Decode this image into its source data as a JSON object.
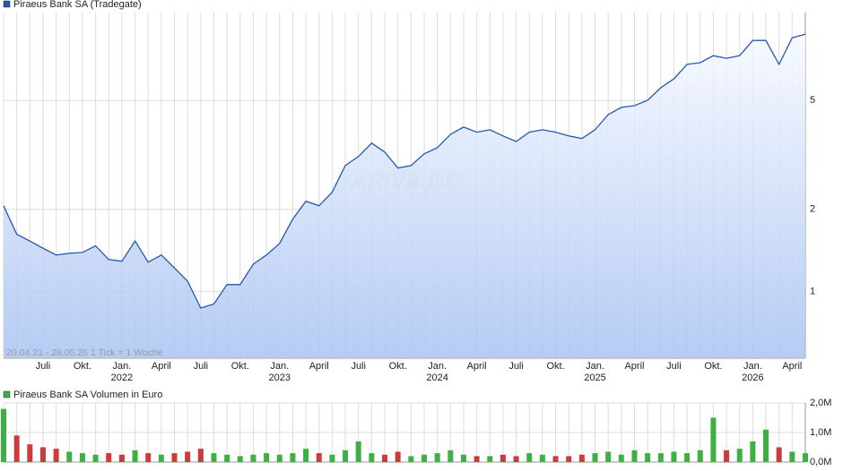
{
  "chart_data": [
    {
      "type": "line",
      "title": "Piraeus Bank SA (Tradegate)",
      "note": "20.04.21 - 28.05.26   1 Tick = 1 Woche",
      "watermark": "ARIVA.DE",
      "x": [
        "2021-04",
        "2021-05",
        "2021-06",
        "2021-07",
        "2021-08",
        "2021-09",
        "2021-10",
        "2021-11",
        "2021-12",
        "2022-01",
        "2022-02",
        "2022-03",
        "2022-04",
        "2022-05",
        "2022-06",
        "2022-07",
        "2022-08",
        "2022-09",
        "2022-10",
        "2022-11",
        "2022-12",
        "2023-01",
        "2023-02",
        "2023-03",
        "2023-04",
        "2023-05",
        "2023-06",
        "2023-07",
        "2023-08",
        "2023-09",
        "2023-10",
        "2023-11",
        "2023-12",
        "2024-01",
        "2024-02",
        "2024-03",
        "2024-04",
        "2024-05",
        "2024-06",
        "2024-07",
        "2024-08",
        "2024-09",
        "2024-10",
        "2024-11",
        "2024-12",
        "2025-01",
        "2025-02",
        "2025-03",
        "2025-04",
        "2025-05",
        "2025-06",
        "2025-07",
        "2025-08",
        "2025-09",
        "2025-10",
        "2025-11",
        "2025-12",
        "2026-01",
        "2026-02",
        "2026-03",
        "2026-04",
        "2026-05"
      ],
      "series": [
        {
          "name": "Piraeus Bank SA (Tradegate)",
          "color": "#2358b0",
          "values": [
            2.06,
            1.62,
            1.53,
            1.44,
            1.36,
            1.38,
            1.39,
            1.47,
            1.31,
            1.29,
            1.53,
            1.28,
            1.36,
            1.22,
            1.09,
            0.87,
            0.9,
            1.06,
            1.06,
            1.26,
            1.36,
            1.5,
            1.84,
            2.14,
            2.06,
            2.31,
            2.89,
            3.12,
            3.49,
            3.24,
            2.83,
            2.89,
            3.19,
            3.36,
            3.76,
            4.0,
            3.83,
            3.91,
            3.71,
            3.54,
            3.83,
            3.91,
            3.83,
            3.71,
            3.63,
            3.91,
            4.44,
            4.72,
            4.79,
            5.01,
            5.57,
            6.0,
            6.78,
            6.88,
            7.3,
            7.14,
            7.3,
            8.3,
            8.3,
            6.78,
            8.49,
            8.75
          ]
        }
      ],
      "log_scale": true,
      "ylim": [
        0.57,
        10.5
      ],
      "yticks": [
        1,
        2,
        5
      ],
      "xticks": [
        {
          "value": "2021-07",
          "label": "Juli"
        },
        {
          "value": "2021-10",
          "label": "Okt."
        },
        {
          "value": "2022-01",
          "label": "Jan."
        },
        {
          "value": "2022-04",
          "label": "April"
        },
        {
          "value": "2022-07",
          "label": "Juli"
        },
        {
          "value": "2022-10",
          "label": "Okt."
        },
        {
          "value": "2023-01",
          "label": "Jan."
        },
        {
          "value": "2023-04",
          "label": "April"
        },
        {
          "value": "2023-07",
          "label": "Juli"
        },
        {
          "value": "2023-10",
          "label": "Okt."
        },
        {
          "value": "2024-01",
          "label": "Jan."
        },
        {
          "value": "2024-04",
          "label": "April"
        },
        {
          "value": "2024-07",
          "label": "Juli"
        },
        {
          "value": "2024-10",
          "label": "Okt."
        },
        {
          "value": "2025-01",
          "label": "Jan."
        },
        {
          "value": "2025-04",
          "label": "April"
        },
        {
          "value": "2025-07",
          "label": "Juli"
        },
        {
          "value": "2025-10",
          "label": "Okt."
        },
        {
          "value": "2026-01",
          "label": "Jan."
        },
        {
          "value": "2026-04",
          "label": "April"
        }
      ],
      "xyears": [
        {
          "value": "2022-01",
          "label": "2022"
        },
        {
          "value": "2023-01",
          "label": "2023"
        },
        {
          "value": "2024-01",
          "label": "2024"
        },
        {
          "value": "2025-01",
          "label": "2025"
        },
        {
          "value": "2026-01",
          "label": "2026"
        }
      ],
      "grid": true
    },
    {
      "type": "bar",
      "x": [
        "2021-04",
        "2021-05",
        "2021-06",
        "2021-07",
        "2021-08",
        "2021-09",
        "2021-10",
        "2021-11",
        "2021-12",
        "2022-01",
        "2022-02",
        "2022-03",
        "2022-04",
        "2022-05",
        "2022-06",
        "2022-07",
        "2022-08",
        "2022-09",
        "2022-10",
        "2022-11",
        "2022-12",
        "2023-01",
        "2023-02",
        "2023-03",
        "2023-04",
        "2023-05",
        "2023-06",
        "2023-07",
        "2023-08",
        "2023-09",
        "2023-10",
        "2023-11",
        "2023-12",
        "2024-01",
        "2024-02",
        "2024-03",
        "2024-04",
        "2024-05",
        "2024-06",
        "2024-07",
        "2024-08",
        "2024-09",
        "2024-10",
        "2024-11",
        "2024-12",
        "2025-01",
        "2025-02",
        "2025-03",
        "2025-04",
        "2025-05",
        "2025-06",
        "2025-07",
        "2025-08",
        "2025-09",
        "2025-10",
        "2025-11",
        "2025-12",
        "2026-01",
        "2026-02",
        "2026-03",
        "2026-04",
        "2026-05"
      ],
      "series": [
        {
          "name": "Piraeus Bank SA Volumen in Euro",
          "color": "#3cb043",
          "values": [
            1800000,
            900000,
            600000,
            500000,
            450000,
            350000,
            300000,
            250000,
            300000,
            250000,
            400000,
            300000,
            250000,
            300000,
            350000,
            450000,
            300000,
            250000,
            200000,
            250000,
            300000,
            250000,
            300000,
            450000,
            300000,
            250000,
            400000,
            700000,
            300000,
            250000,
            350000,
            200000,
            250000,
            300000,
            400000,
            250000,
            200000,
            200000,
            250000,
            200000,
            300000,
            250000,
            200000,
            200000,
            250000,
            300000,
            350000,
            250000,
            400000,
            300000,
            300000,
            350000,
            300000,
            400000,
            1500000,
            400000,
            450000,
            700000,
            1100000,
            500000,
            350000,
            300000
          ]
        }
      ],
      "down_color": "#cc3b3b",
      "ylim": [
        0,
        2000000
      ],
      "yticks": [
        {
          "value": 0,
          "label": "0,0M"
        },
        {
          "value": 1000000,
          "label": "1,0M"
        },
        {
          "value": 2000000,
          "label": "2,0M"
        }
      ],
      "grid": true
    }
  ]
}
